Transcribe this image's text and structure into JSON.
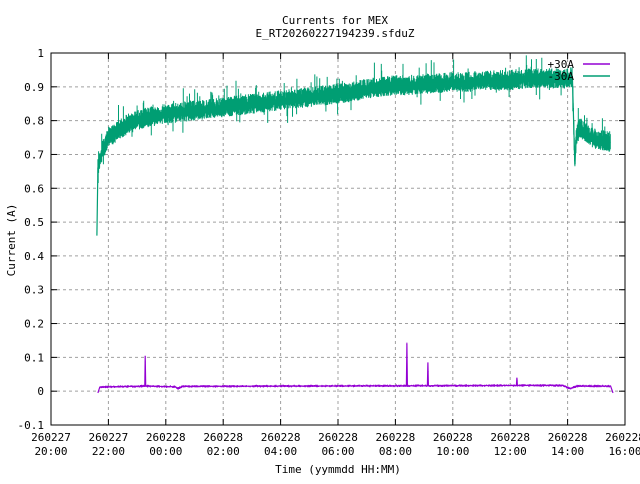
{
  "chart_data": {
    "type": "line",
    "title": "Currents for MEX",
    "subtitle": "E_RT20260227194239.sfduZ",
    "xlabel": "Time (yymmdd HH:MM)",
    "ylabel": "Current (A)",
    "xlim": [
      "260227 20:00",
      "260228 16:00"
    ],
    "ylim": [
      -0.1,
      1
    ],
    "yticks": [
      "-0.1",
      "0",
      "0.1",
      "0.2",
      "0.3",
      "0.4",
      "0.5",
      "0.6",
      "0.7",
      "0.8",
      "0.9",
      "1"
    ],
    "xticks": [
      [
        "260227",
        "20:00"
      ],
      [
        "260227",
        "22:00"
      ],
      [
        "260228",
        "00:00"
      ],
      [
        "260228",
        "02:00"
      ],
      [
        "260228",
        "04:00"
      ],
      [
        "260228",
        "06:00"
      ],
      [
        "260228",
        "08:00"
      ],
      [
        "260228",
        "10:00"
      ],
      [
        "260228",
        "12:00"
      ],
      [
        "260228",
        "14:00"
      ],
      [
        "260228",
        "16:00"
      ]
    ],
    "grid": true,
    "legend_position": "top-right",
    "series": [
      {
        "name": "+30A",
        "color": "#9400d3",
        "points": [
          [
            "260227 21:38",
            -0.005
          ],
          [
            "260227 21:42",
            0.012
          ],
          [
            "260227 23:16",
            0.015
          ],
          [
            "260227 23:17",
            0.105
          ],
          [
            "260227 23:18",
            0.015
          ],
          [
            "260228 00:20",
            0.013
          ],
          [
            "260228 00:25",
            0.008
          ],
          [
            "260228 00:35",
            0.014
          ],
          [
            "260228 04:00",
            0.015
          ],
          [
            "260228 08:23",
            0.016
          ],
          [
            "260228 08:24",
            0.14
          ],
          [
            "260228 08:25",
            0.016
          ],
          [
            "260228 09:07",
            0.016
          ],
          [
            "260228 09:08",
            0.085
          ],
          [
            "260228 09:09",
            0.016
          ],
          [
            "260228 12:13",
            0.017
          ],
          [
            "260228 12:14",
            0.04
          ],
          [
            "260228 12:15",
            0.017
          ],
          [
            "260228 13:50",
            0.017
          ],
          [
            "260228 14:05",
            0.008
          ],
          [
            "260228 14:20",
            0.015
          ],
          [
            "260228 15:30",
            0.015
          ],
          [
            "260228 15:35",
            -0.005
          ]
        ]
      },
      {
        "name": "-30A",
        "color": "#009e73",
        "points": [
          [
            "260227 21:36",
            0.46
          ],
          [
            "260227 21:38",
            0.66
          ],
          [
            "260227 21:45",
            0.7
          ],
          [
            "260227 21:50",
            0.72
          ],
          [
            "260227 22:00",
            0.75
          ],
          [
            "260227 22:20",
            0.77
          ],
          [
            "260227 22:40",
            0.79
          ],
          [
            "260227 23:00",
            0.8
          ],
          [
            "260227 23:20",
            0.81
          ],
          [
            "260227 23:40",
            0.815
          ],
          [
            "260228 00:00",
            0.82
          ],
          [
            "260228 00:30",
            0.825
          ],
          [
            "260228 01:00",
            0.83
          ],
          [
            "260228 01:30",
            0.835
          ],
          [
            "260228 02:00",
            0.84
          ],
          [
            "260228 02:30",
            0.845
          ],
          [
            "260228 03:00",
            0.85
          ],
          [
            "260228 03:30",
            0.855
          ],
          [
            "260228 04:00",
            0.86
          ],
          [
            "260228 04:30",
            0.865
          ],
          [
            "260228 05:00",
            0.87
          ],
          [
            "260228 05:30",
            0.875
          ],
          [
            "260228 06:00",
            0.88
          ],
          [
            "260228 06:30",
            0.885
          ],
          [
            "260228 07:00",
            0.895
          ],
          [
            "260228 07:30",
            0.9
          ],
          [
            "260228 08:00",
            0.905
          ],
          [
            "260228 08:30",
            0.905
          ],
          [
            "260228 09:00",
            0.91
          ],
          [
            "260228 09:30",
            0.91
          ],
          [
            "260228 10:00",
            0.915
          ],
          [
            "260228 10:30",
            0.915
          ],
          [
            "260228 11:00",
            0.92
          ],
          [
            "260228 11:30",
            0.92
          ],
          [
            "260228 12:00",
            0.92
          ],
          [
            "260228 12:30",
            0.925
          ],
          [
            "260228 13:00",
            0.925
          ],
          [
            "260228 13:30",
            0.925
          ],
          [
            "260228 14:00",
            0.925
          ],
          [
            "260228 14:10",
            0.93
          ],
          [
            "260228 14:15",
            0.67
          ],
          [
            "260228 14:18",
            0.75
          ],
          [
            "260228 14:25",
            0.78
          ],
          [
            "260228 14:40",
            0.76
          ],
          [
            "260228 15:00",
            0.745
          ],
          [
            "260228 15:20",
            0.74
          ],
          [
            "260228 15:30",
            0.735
          ]
        ]
      }
    ]
  }
}
